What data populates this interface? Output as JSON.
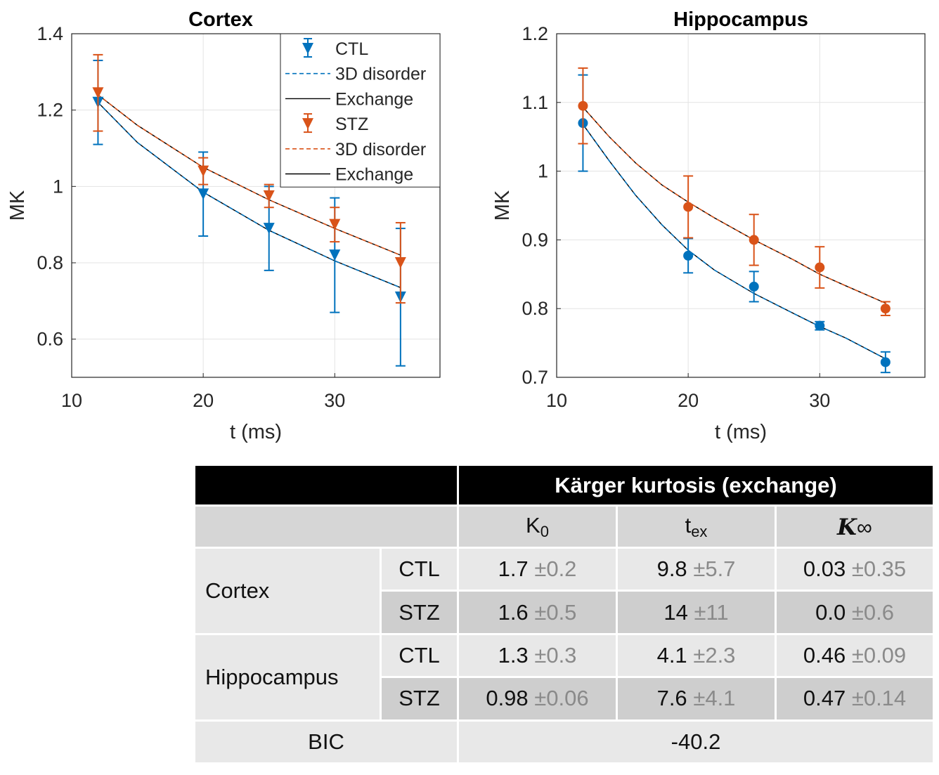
{
  "colors": {
    "ctl": "#0072BD",
    "stz": "#D95319",
    "fit": "#000000",
    "grid": "#e3e3e3"
  },
  "chart_data": [
    {
      "type": "line",
      "title": "Cortex",
      "xlabel": "t (ms)",
      "ylabel": "MK",
      "xlim": [
        10,
        38
      ],
      "ylim": [
        0.5,
        1.4
      ],
      "xticks": [
        10,
        20,
        30
      ],
      "yticks": [
        0.6,
        0.8,
        1,
        1.2,
        1.4
      ],
      "ytick_labels": [
        "0.6",
        "0.8",
        "1",
        "1.2",
        "1.4"
      ],
      "marker": "triangle-down",
      "legend_position": "top-right",
      "legend": [
        {
          "label": "CTL",
          "kind": "marker",
          "color": "#0072BD"
        },
        {
          "label": "3D disorder",
          "kind": "dashed",
          "color": "#0072BD"
        },
        {
          "label": "Exchange",
          "kind": "solid",
          "color": "#000000"
        },
        {
          "label": "STZ",
          "kind": "marker",
          "color": "#D95319"
        },
        {
          "label": "3D disorder",
          "kind": "dashed",
          "color": "#D95319"
        },
        {
          "label": "Exchange",
          "kind": "solid",
          "color": "#000000"
        }
      ],
      "series": [
        {
          "name": "CTL",
          "color": "#0072BD",
          "x": [
            12,
            20,
            25,
            30,
            35
          ],
          "y": [
            1.22,
            0.98,
            0.89,
            0.82,
            0.71
          ],
          "err": [
            0.11,
            0.11,
            0.11,
            0.15,
            0.18
          ],
          "fit_x": [
            12,
            15,
            20,
            25,
            30,
            35
          ],
          "fit_y": [
            1.22,
            1.115,
            0.985,
            0.885,
            0.805,
            0.735
          ]
        },
        {
          "name": "STZ",
          "color": "#D95319",
          "x": [
            12,
            20,
            25,
            30,
            35
          ],
          "y": [
            1.245,
            1.04,
            0.975,
            0.9,
            0.8
          ],
          "err": [
            0.1,
            0.035,
            0.03,
            0.045,
            0.105
          ],
          "fit_x": [
            12,
            15,
            20,
            25,
            30,
            35
          ],
          "fit_y": [
            1.24,
            1.16,
            1.05,
            0.965,
            0.89,
            0.82
          ]
        }
      ]
    },
    {
      "type": "line",
      "title": "Hippocampus",
      "xlabel": "t (ms)",
      "ylabel": "MK",
      "xlim": [
        10,
        38
      ],
      "ylim": [
        0.7,
        1.2
      ],
      "xticks": [
        10,
        20,
        30
      ],
      "yticks": [
        0.7,
        0.8,
        0.9,
        1,
        1.1,
        1.2
      ],
      "ytick_labels": [
        "0.7",
        "0.8",
        "0.9",
        "1",
        "1.1",
        "1.2"
      ],
      "marker": "circle",
      "legend_position": "none",
      "legend": [],
      "series": [
        {
          "name": "CTL",
          "color": "#0072BD",
          "x": [
            12,
            20,
            25,
            30,
            35
          ],
          "y": [
            1.07,
            0.877,
            0.832,
            0.775,
            0.722
          ],
          "err": [
            0.07,
            0.025,
            0.022,
            0.006,
            0.015
          ],
          "fit_x": [
            12,
            14,
            16,
            18,
            20,
            22,
            25,
            28,
            30,
            32,
            35
          ],
          "fit_y": [
            1.068,
            1.015,
            0.965,
            0.922,
            0.885,
            0.856,
            0.822,
            0.793,
            0.774,
            0.757,
            0.727
          ]
        },
        {
          "name": "STZ",
          "color": "#D95319",
          "x": [
            12,
            20,
            25,
            30,
            35
          ],
          "y": [
            1.095,
            0.948,
            0.9,
            0.86,
            0.8
          ],
          "err": [
            0.055,
            0.045,
            0.037,
            0.03,
            0.01
          ],
          "fit_x": [
            12,
            14,
            16,
            18,
            20,
            22,
            25,
            28,
            30,
            32,
            35
          ],
          "fit_y": [
            1.093,
            1.05,
            1.012,
            0.98,
            0.955,
            0.932,
            0.9,
            0.871,
            0.85,
            0.833,
            0.808
          ]
        }
      ]
    }
  ],
  "table": {
    "title": "Kärger kurtosis (exchange)",
    "col_k0": "K",
    "col_k0_sub": "0",
    "col_tex": "t",
    "col_tex_sub": "ex",
    "col_kinf": "K",
    "col_kinf_sub": "∞",
    "rows": [
      {
        "group": "Cortex",
        "label": "CTL",
        "k0": "1.7",
        "k0_sd": "±0.2",
        "tex": "9.8",
        "tex_sd": "±5.7",
        "kinf": "0.03",
        "kinf_sd": "±0.35"
      },
      {
        "label": "STZ",
        "k0": "1.6",
        "k0_sd": "±0.5",
        "tex": "14",
        "tex_sd": "±11",
        "kinf": "0.0",
        "kinf_sd": "±0.6"
      },
      {
        "group": "Hippocampus",
        "label": "CTL",
        "k0": "1.3",
        "k0_sd": "±0.3",
        "tex": "4.1",
        "tex_sd": "±2.3",
        "kinf": "0.46",
        "kinf_sd": "±0.09"
      },
      {
        "label": "STZ",
        "k0": "0.98",
        "k0_sd": "±0.06",
        "tex": "7.6",
        "tex_sd": "±4.1",
        "kinf": "0.47",
        "kinf_sd": "±0.14"
      }
    ],
    "bic_label": "BIC",
    "bic_value": "-40.2"
  }
}
